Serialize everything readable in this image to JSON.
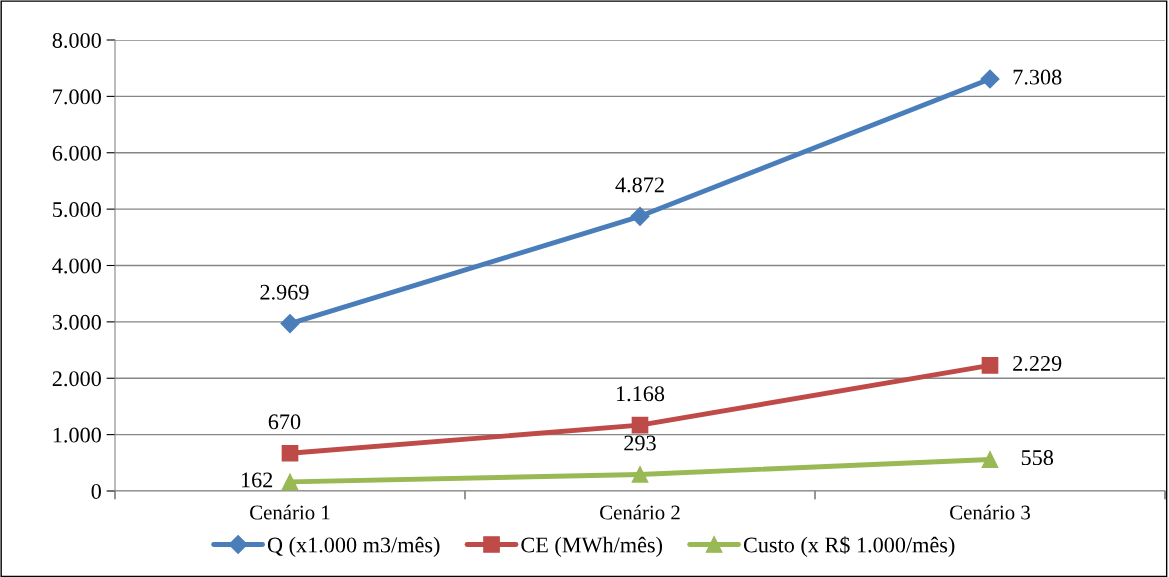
{
  "chart_data": {
    "type": "line",
    "categories": [
      "Cenário 1",
      "Cenário 2",
      "Cenário 3"
    ],
    "series": [
      {
        "name": "Q (x1.000 m3/mês)",
        "color": "#4a7ebb",
        "marker": "diamond",
        "values": [
          2969,
          4872,
          7308
        ],
        "value_labels": [
          "2.969",
          "4.872",
          "7.308"
        ]
      },
      {
        "name": "CE (MWh/mês)",
        "color": "#be4b48",
        "marker": "square",
        "values": [
          670,
          1168,
          2229
        ],
        "value_labels": [
          "670",
          "1.168",
          "2.229"
        ]
      },
      {
        "name": "Custo (x R$ 1.000/mês)",
        "color": "#98b954",
        "marker": "triangle",
        "values": [
          162,
          293,
          558
        ],
        "value_labels": [
          "162",
          "293",
          "558"
        ]
      }
    ],
    "ylim": [
      0,
      8000
    ],
    "yticks": [
      {
        "value": 0,
        "label": "0"
      },
      {
        "value": 1000,
        "label": "1.000"
      },
      {
        "value": 2000,
        "label": "2.000"
      },
      {
        "value": 3000,
        "label": "3.000"
      },
      {
        "value": 4000,
        "label": "4.000"
      },
      {
        "value": 5000,
        "label": "5.000"
      },
      {
        "value": 6000,
        "label": "6.000"
      },
      {
        "value": 7000,
        "label": "7.000"
      },
      {
        "value": 8000,
        "label": "8.000"
      }
    ],
    "grid": "y",
    "legend": "bottom",
    "line_style": "solid"
  }
}
